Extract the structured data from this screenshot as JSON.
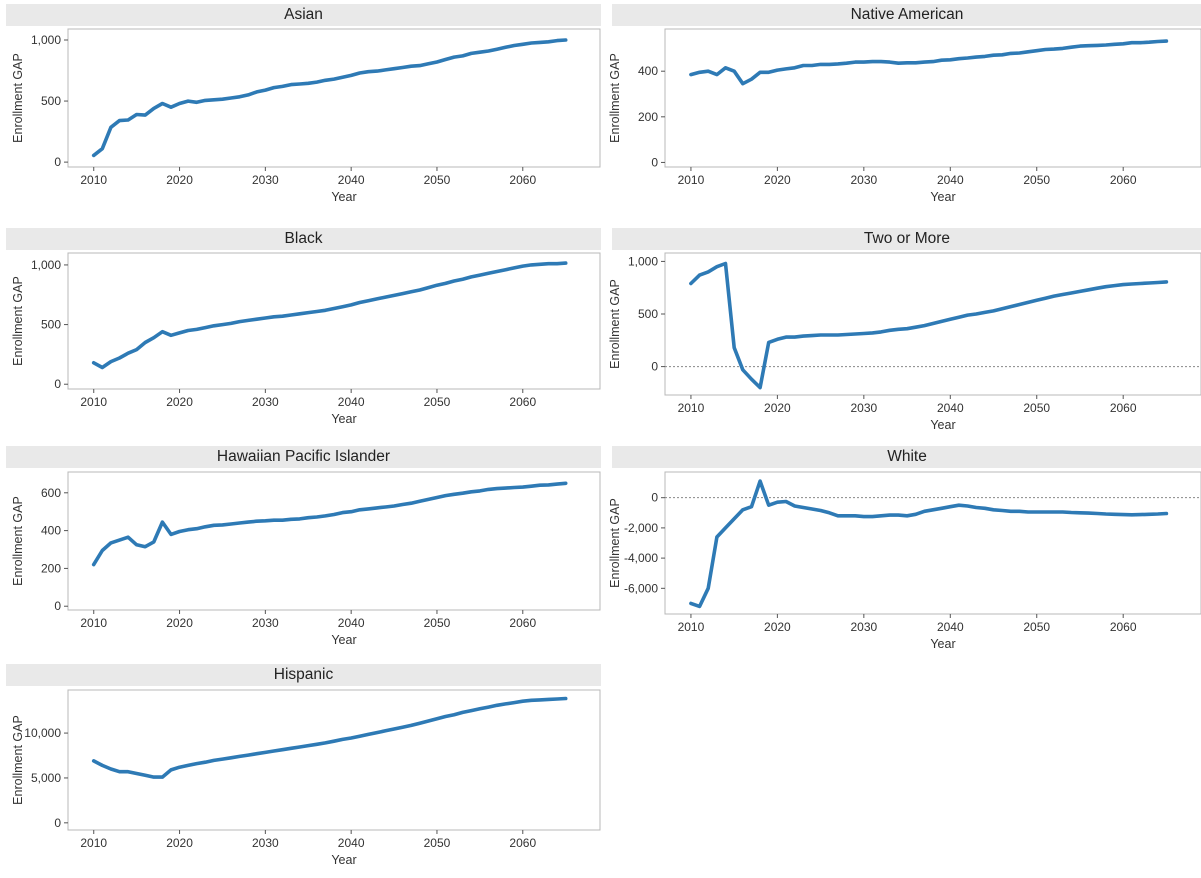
{
  "colors": {
    "line": "#2e7ab5",
    "title_bg": "#e9e9e9",
    "zero_line": "#888888"
  },
  "chart_data": [
    {
      "type": "line",
      "title": "Asian",
      "xlabel": "Year",
      "ylabel": "Enrollment GAP",
      "xlim": [
        2007,
        2069
      ],
      "ylim": [
        -40,
        1090
      ],
      "x_ticks": [
        2010,
        2020,
        2030,
        2040,
        2050,
        2060
      ],
      "y_ticks": [
        0,
        500,
        1000
      ],
      "y_tick_labels": [
        "0",
        "500",
        "1,000"
      ],
      "zero_line": false,
      "series": [
        {
          "x": [
            2010,
            2011,
            2012,
            2013,
            2014,
            2015,
            2016,
            2017,
            2018,
            2019,
            2020,
            2021,
            2022,
            2023,
            2024,
            2025,
            2026,
            2027,
            2028,
            2029,
            2030,
            2031,
            2032,
            2033,
            2034,
            2035,
            2036,
            2037,
            2038,
            2039,
            2040,
            2041,
            2042,
            2043,
            2044,
            2045,
            2046,
            2047,
            2048,
            2049,
            2050,
            2051,
            2052,
            2053,
            2054,
            2055,
            2056,
            2057,
            2058,
            2059,
            2060,
            2061,
            2062,
            2063,
            2064,
            2065
          ],
          "y": [
            55,
            110,
            285,
            340,
            345,
            390,
            385,
            440,
            480,
            450,
            480,
            500,
            490,
            505,
            510,
            515,
            525,
            535,
            550,
            575,
            590,
            610,
            620,
            635,
            640,
            645,
            655,
            670,
            680,
            695,
            710,
            730,
            740,
            745,
            755,
            765,
            775,
            785,
            790,
            805,
            820,
            840,
            860,
            870,
            890,
            900,
            910,
            925,
            940,
            955,
            965,
            975,
            980,
            985,
            995,
            1000
          ]
        }
      ]
    },
    {
      "type": "line",
      "title": "Native American",
      "xlabel": "Year",
      "ylabel": "Enrollment GAP",
      "xlim": [
        2007,
        2069
      ],
      "ylim": [
        -20,
        585
      ],
      "x_ticks": [
        2010,
        2020,
        2030,
        2040,
        2050,
        2060
      ],
      "y_ticks": [
        0,
        200,
        400
      ],
      "y_tick_labels": [
        "0",
        "200",
        "400"
      ],
      "zero_line": false,
      "series": [
        {
          "x": [
            2010,
            2011,
            2012,
            2013,
            2014,
            2015,
            2016,
            2017,
            2018,
            2019,
            2020,
            2021,
            2022,
            2023,
            2024,
            2025,
            2026,
            2027,
            2028,
            2029,
            2030,
            2031,
            2032,
            2033,
            2034,
            2035,
            2036,
            2037,
            2038,
            2039,
            2040,
            2041,
            2042,
            2043,
            2044,
            2045,
            2046,
            2047,
            2048,
            2049,
            2050,
            2051,
            2052,
            2053,
            2054,
            2055,
            2056,
            2057,
            2058,
            2059,
            2060,
            2061,
            2062,
            2063,
            2064,
            2065
          ],
          "y": [
            385,
            395,
            400,
            385,
            415,
            400,
            345,
            365,
            395,
            395,
            405,
            410,
            415,
            425,
            425,
            430,
            430,
            432,
            435,
            440,
            440,
            442,
            442,
            440,
            435,
            437,
            437,
            440,
            442,
            448,
            450,
            455,
            458,
            462,
            465,
            470,
            472,
            478,
            480,
            485,
            490,
            495,
            497,
            500,
            505,
            510,
            512,
            513,
            515,
            518,
            520,
            525,
            525,
            527,
            530,
            532
          ]
        }
      ]
    },
    {
      "type": "line",
      "title": "Black",
      "xlabel": "Year",
      "ylabel": "Enrollment GAP",
      "xlim": [
        2007,
        2069
      ],
      "ylim": [
        -40,
        1100
      ],
      "x_ticks": [
        2010,
        2020,
        2030,
        2040,
        2050,
        2060
      ],
      "y_ticks": [
        0,
        500,
        1000
      ],
      "y_tick_labels": [
        "0",
        "500",
        "1,000"
      ],
      "zero_line": false,
      "series": [
        {
          "x": [
            2010,
            2011,
            2012,
            2013,
            2014,
            2015,
            2016,
            2017,
            2018,
            2019,
            2020,
            2021,
            2022,
            2023,
            2024,
            2025,
            2026,
            2027,
            2028,
            2029,
            2030,
            2031,
            2032,
            2033,
            2034,
            2035,
            2036,
            2037,
            2038,
            2039,
            2040,
            2041,
            2042,
            2043,
            2044,
            2045,
            2046,
            2047,
            2048,
            2049,
            2050,
            2051,
            2052,
            2053,
            2054,
            2055,
            2056,
            2057,
            2058,
            2059,
            2060,
            2061,
            2062,
            2063,
            2064,
            2065
          ],
          "y": [
            180,
            140,
            190,
            220,
            260,
            290,
            350,
            390,
            440,
            410,
            430,
            450,
            460,
            475,
            490,
            500,
            510,
            525,
            535,
            545,
            555,
            565,
            570,
            580,
            590,
            600,
            610,
            620,
            635,
            650,
            665,
            685,
            700,
            715,
            730,
            745,
            760,
            775,
            790,
            810,
            830,
            845,
            865,
            880,
            900,
            915,
            930,
            945,
            960,
            975,
            990,
            1000,
            1005,
            1010,
            1010,
            1015
          ]
        }
      ]
    },
    {
      "type": "line",
      "title": "Two or More",
      "xlabel": "Year",
      "ylabel": "Enrollment GAP",
      "xlim": [
        2007,
        2069
      ],
      "ylim": [
        -270,
        1080
      ],
      "x_ticks": [
        2010,
        2020,
        2030,
        2040,
        2050,
        2060
      ],
      "y_ticks": [
        0,
        500,
        1000
      ],
      "y_tick_labels": [
        "0",
        "500",
        "1,000"
      ],
      "zero_line": true,
      "series": [
        {
          "x": [
            2010,
            2011,
            2012,
            2013,
            2014,
            2015,
            2016,
            2017,
            2018,
            2019,
            2020,
            2021,
            2022,
            2023,
            2024,
            2025,
            2026,
            2027,
            2028,
            2029,
            2030,
            2031,
            2032,
            2033,
            2034,
            2035,
            2036,
            2037,
            2038,
            2039,
            2040,
            2041,
            2042,
            2043,
            2044,
            2045,
            2046,
            2047,
            2048,
            2049,
            2050,
            2051,
            2052,
            2053,
            2054,
            2055,
            2056,
            2057,
            2058,
            2059,
            2060,
            2061,
            2062,
            2063,
            2064,
            2065
          ],
          "y": [
            790,
            870,
            900,
            950,
            980,
            180,
            -30,
            -120,
            -200,
            230,
            260,
            280,
            280,
            290,
            295,
            300,
            300,
            300,
            305,
            310,
            315,
            320,
            330,
            345,
            355,
            360,
            375,
            390,
            410,
            430,
            450,
            470,
            490,
            500,
            515,
            530,
            550,
            570,
            590,
            610,
            630,
            650,
            670,
            685,
            700,
            715,
            730,
            745,
            760,
            770,
            780,
            785,
            790,
            795,
            800,
            805
          ]
        }
      ]
    },
    {
      "type": "line",
      "title": "Hawaiian Pacific Islander",
      "xlabel": "Year",
      "ylabel": "Enrollment GAP",
      "xlim": [
        2007,
        2069
      ],
      "ylim": [
        -20,
        710
      ],
      "x_ticks": [
        2010,
        2020,
        2030,
        2040,
        2050,
        2060
      ],
      "y_ticks": [
        0,
        200,
        400,
        600
      ],
      "y_tick_labels": [
        "0",
        "200",
        "400",
        "600"
      ],
      "zero_line": false,
      "series": [
        {
          "x": [
            2010,
            2011,
            2012,
            2013,
            2014,
            2015,
            2016,
            2017,
            2018,
            2019,
            2020,
            2021,
            2022,
            2023,
            2024,
            2025,
            2026,
            2027,
            2028,
            2029,
            2030,
            2031,
            2032,
            2033,
            2034,
            2035,
            2036,
            2037,
            2038,
            2039,
            2040,
            2041,
            2042,
            2043,
            2044,
            2045,
            2046,
            2047,
            2048,
            2049,
            2050,
            2051,
            2052,
            2053,
            2054,
            2055,
            2056,
            2057,
            2058,
            2059,
            2060,
            2061,
            2062,
            2063,
            2064,
            2065
          ],
          "y": [
            220,
            295,
            335,
            350,
            365,
            325,
            315,
            340,
            445,
            380,
            395,
            405,
            410,
            420,
            428,
            430,
            435,
            440,
            445,
            450,
            452,
            455,
            455,
            460,
            462,
            468,
            472,
            478,
            485,
            495,
            500,
            510,
            515,
            520,
            525,
            530,
            538,
            545,
            555,
            565,
            575,
            585,
            592,
            598,
            605,
            610,
            618,
            622,
            625,
            628,
            630,
            635,
            640,
            642,
            646,
            650
          ]
        }
      ]
    },
    {
      "type": "line",
      "title": "White",
      "xlabel": "Year",
      "ylabel": "Enrollment GAP",
      "xlim": [
        2007,
        2069
      ],
      "ylim": [
        -7700,
        1700
      ],
      "x_ticks": [
        2010,
        2020,
        2030,
        2040,
        2050,
        2060
      ],
      "y_ticks": [
        -6000,
        -4000,
        -2000,
        0
      ],
      "y_tick_labels": [
        "-6,000",
        "-4,000",
        "-2,000",
        "0"
      ],
      "zero_line": true,
      "series": [
        {
          "x": [
            2010,
            2011,
            2012,
            2013,
            2014,
            2015,
            2016,
            2017,
            2018,
            2019,
            2020,
            2021,
            2022,
            2023,
            2024,
            2025,
            2026,
            2027,
            2028,
            2029,
            2030,
            2031,
            2032,
            2033,
            2034,
            2035,
            2036,
            2037,
            2038,
            2039,
            2040,
            2041,
            2042,
            2043,
            2044,
            2045,
            2046,
            2047,
            2048,
            2049,
            2050,
            2051,
            2052,
            2053,
            2054,
            2055,
            2056,
            2057,
            2058,
            2059,
            2060,
            2061,
            2062,
            2063,
            2064,
            2065
          ],
          "y": [
            -7000,
            -7200,
            -6000,
            -2600,
            -2000,
            -1400,
            -800,
            -600,
            1100,
            -500,
            -300,
            -250,
            -550,
            -650,
            -750,
            -850,
            -1000,
            -1200,
            -1200,
            -1200,
            -1250,
            -1250,
            -1200,
            -1150,
            -1150,
            -1200,
            -1100,
            -900,
            -800,
            -700,
            -600,
            -500,
            -550,
            -650,
            -700,
            -800,
            -850,
            -900,
            -900,
            -950,
            -950,
            -950,
            -950,
            -950,
            -980,
            -1000,
            -1020,
            -1050,
            -1080,
            -1100,
            -1120,
            -1130,
            -1120,
            -1100,
            -1080,
            -1050
          ]
        }
      ]
    },
    {
      "type": "line",
      "title": "Hispanic",
      "xlabel": "Year",
      "ylabel": "Enrollment GAP",
      "xlim": [
        2007,
        2069
      ],
      "ylim": [
        -800,
        14800
      ],
      "x_ticks": [
        2010,
        2020,
        2030,
        2040,
        2050,
        2060
      ],
      "y_ticks": [
        0,
        5000,
        10000
      ],
      "y_tick_labels": [
        "0",
        "5,000",
        "10,000"
      ],
      "zero_line": false,
      "series": [
        {
          "x": [
            2010,
            2011,
            2012,
            2013,
            2014,
            2015,
            2016,
            2017,
            2018,
            2019,
            2020,
            2021,
            2022,
            2023,
            2024,
            2025,
            2026,
            2027,
            2028,
            2029,
            2030,
            2031,
            2032,
            2033,
            2034,
            2035,
            2036,
            2037,
            2038,
            2039,
            2040,
            2041,
            2042,
            2043,
            2044,
            2045,
            2046,
            2047,
            2048,
            2049,
            2050,
            2051,
            2052,
            2053,
            2054,
            2055,
            2056,
            2057,
            2058,
            2059,
            2060,
            2061,
            2062,
            2063,
            2064,
            2065
          ],
          "y": [
            6900,
            6400,
            6000,
            5700,
            5700,
            5500,
            5300,
            5100,
            5100,
            5900,
            6200,
            6400,
            6600,
            6750,
            6950,
            7100,
            7250,
            7400,
            7550,
            7700,
            7850,
            8000,
            8150,
            8300,
            8450,
            8600,
            8750,
            8900,
            9100,
            9300,
            9450,
            9650,
            9850,
            10050,
            10250,
            10450,
            10650,
            10850,
            11100,
            11350,
            11600,
            11850,
            12050,
            12300,
            12500,
            12700,
            12900,
            13100,
            13250,
            13400,
            13550,
            13650,
            13700,
            13750,
            13800,
            13850
          ]
        }
      ]
    }
  ]
}
